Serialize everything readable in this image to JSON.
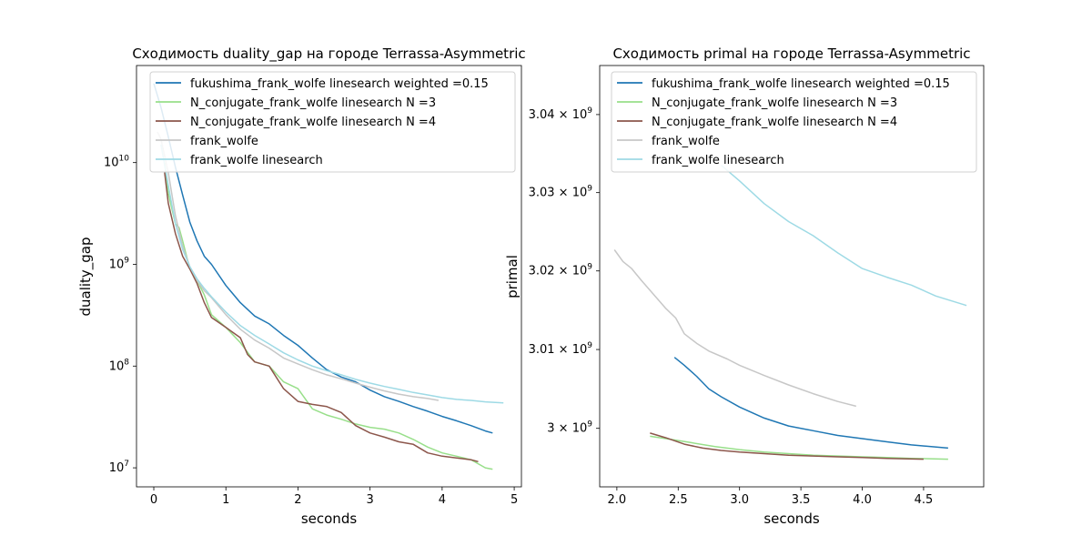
{
  "chart_data": [
    {
      "type": "line",
      "title": "Сходимость duality_gap на городе Terrassa-Asymmetric",
      "xlabel": "seconds",
      "ylabel": "duality_gap",
      "xlim": [
        -0.24,
        5.1
      ],
      "xticks": [
        0,
        1,
        2,
        3,
        4,
        5
      ],
      "xtick_labels": [
        "0",
        "1",
        "2",
        "3",
        "4",
        "5"
      ],
      "yscale": "log",
      "ylim": [
        6500000,
        90000000000
      ],
      "yticks": [
        10000000,
        100000000,
        1000000000,
        10000000000
      ],
      "ytick_labels": [
        {
          "base": "10",
          "exp": "7"
        },
        {
          "base": "10",
          "exp": "8"
        },
        {
          "base": "10",
          "exp": "9"
        },
        {
          "base": "10",
          "exp": "10"
        }
      ],
      "grid": false,
      "legend_position": "top-right",
      "series": [
        {
          "name": "fukushima_frank_wolfe linesearch weighted =0.15",
          "color": "#1f77b4",
          "x": [
            0,
            0.1,
            0.2,
            0.3,
            0.4,
            0.5,
            0.6,
            0.7,
            0.8,
            1.0,
            1.2,
            1.4,
            1.6,
            1.8,
            2.0,
            2.2,
            2.4,
            2.6,
            2.8,
            3.0,
            3.2,
            3.4,
            3.6,
            3.8,
            4.0,
            4.2,
            4.4,
            4.6,
            4.7
          ],
          "y": [
            60000000000,
            35000000000,
            18000000000,
            9000000000,
            4800000000,
            2600000000,
            1700000000,
            1200000000,
            1000000000,
            620000000,
            420000000,
            310000000,
            260000000,
            200000000,
            160000000,
            120000000,
            92000000,
            78000000,
            70000000,
            58000000,
            50000000,
            45000000,
            40000000,
            36000000,
            32000000,
            29000000,
            26000000,
            23000000,
            22000000
          ]
        },
        {
          "name": "N_conjugate_frank_wolfe linesearch N =3",
          "color": "#98df8a",
          "x": [
            0.15,
            0.2,
            0.3,
            0.35,
            0.4,
            0.5,
            0.6,
            0.7,
            0.8,
            1.0,
            1.2,
            1.4,
            1.6,
            1.8,
            2.0,
            2.2,
            2.4,
            2.6,
            2.8,
            3.0,
            3.2,
            3.4,
            3.6,
            3.8,
            4.0,
            4.2,
            4.4,
            4.6,
            4.7
          ],
          "y": [
            10000000000,
            5000000000,
            2500000000,
            2300000000,
            1700000000,
            900000000,
            700000000,
            500000000,
            320000000,
            240000000,
            170000000,
            110000000,
            100000000,
            70000000,
            60000000,
            38000000,
            33000000,
            30000000,
            27000000,
            25000000,
            24000000,
            22000000,
            19000000,
            16000000,
            14000000,
            13000000,
            12000000,
            10000000,
            9700000
          ]
        },
        {
          "name": "N_conjugate_frank_wolfe linesearch N =4",
          "color": "#8c564b",
          "x": [
            0.15,
            0.2,
            0.3,
            0.4,
            0.5,
            0.6,
            0.7,
            0.8,
            1.0,
            1.2,
            1.3,
            1.4,
            1.6,
            1.8,
            2.0,
            2.2,
            2.4,
            2.6,
            2.8,
            3.0,
            3.2,
            3.4,
            3.6,
            3.8,
            4.0,
            4.2,
            4.4,
            4.5
          ],
          "y": [
            8000000000,
            4000000000,
            2000000000,
            1200000000,
            900000000,
            650000000,
            420000000,
            300000000,
            240000000,
            190000000,
            130000000,
            110000000,
            100000000,
            60000000,
            45000000,
            42000000,
            40000000,
            35000000,
            26000000,
            22000000,
            20000000,
            18000000,
            17000000,
            14000000,
            13000000,
            12500000,
            12000000,
            11500000
          ]
        },
        {
          "name": "frank_wolfe",
          "color": "#c7c7c7",
          "x": [
            0.05,
            0.1,
            0.2,
            0.3,
            0.4,
            0.5,
            0.6,
            0.7,
            0.8,
            1.0,
            1.2,
            1.4,
            1.6,
            1.8,
            2.0,
            2.2,
            2.4,
            2.6,
            2.8,
            3.0,
            3.2,
            3.4,
            3.6,
            3.8,
            3.95
          ],
          "y": [
            20000000000,
            17000000000,
            8000000000,
            3000000000,
            1500000000,
            950000000,
            700000000,
            550000000,
            470000000,
            320000000,
            230000000,
            180000000,
            150000000,
            120000000,
            105000000,
            92000000,
            82000000,
            75000000,
            68000000,
            62000000,
            57000000,
            53000000,
            50000000,
            48000000,
            46000000
          ]
        },
        {
          "name": "frank_wolfe linesearch",
          "color": "#9edae5",
          "x": [
            0.1,
            0.2,
            0.3,
            0.4,
            0.5,
            0.6,
            0.7,
            0.8,
            1.0,
            1.2,
            1.4,
            1.6,
            1.8,
            2.0,
            2.2,
            2.4,
            2.6,
            2.8,
            3.0,
            3.2,
            3.4,
            3.6,
            3.8,
            4.0,
            4.2,
            4.4,
            4.6,
            4.85
          ],
          "y": [
            15000000000,
            6000000000,
            2500000000,
            1400000000,
            950000000,
            720000000,
            580000000,
            480000000,
            340000000,
            250000000,
            200000000,
            165000000,
            135000000,
            115000000,
            100000000,
            90000000,
            82000000,
            74000000,
            68000000,
            63000000,
            59000000,
            55000000,
            52000000,
            49000000,
            47000000,
            46000000,
            44500000,
            43500000
          ]
        }
      ]
    },
    {
      "type": "line",
      "title": "Сходимость primal на городе Terrassa-Asymmetric",
      "xlabel": "seconds",
      "ylabel": "primal",
      "xlim": [
        1.86,
        4.99
      ],
      "xticks": [
        2.0,
        2.5,
        3.0,
        3.5,
        4.0,
        4.5
      ],
      "xtick_labels": [
        "2.0",
        "2.5",
        "3.0",
        "3.5",
        "4.0",
        "4.5"
      ],
      "yscale": "log",
      "ylim": [
        2992600000,
        3046300000
      ],
      "yticks": [
        3000000000,
        3010000000,
        3020000000,
        3030000000,
        3040000000
      ],
      "ytick_labels": [
        {
          "base": "3 × 10",
          "exp": "9"
        },
        {
          "base": "3.01 × 10",
          "exp": "9"
        },
        {
          "base": "3.02 × 10",
          "exp": "9"
        },
        {
          "base": "3.03 × 10",
          "exp": "9"
        },
        {
          "base": "3.04 × 10",
          "exp": "9"
        }
      ],
      "grid": false,
      "legend_position": "top-right",
      "series": [
        {
          "name": "fukushima_frank_wolfe linesearch weighted =0.15",
          "color": "#1f77b4",
          "x": [
            2.47,
            2.55,
            2.65,
            2.75,
            2.85,
            3.0,
            3.2,
            3.4,
            3.6,
            3.8,
            4.0,
            4.2,
            4.4,
            4.7
          ],
          "y": [
            3009000000,
            3008000000,
            3006600000,
            3005000000,
            3004000000,
            3002700000,
            3001300000,
            3000300000,
            2999700000,
            2999100000,
            2998700000,
            2998300000,
            2997900000,
            2997500000
          ]
        },
        {
          "name": "N_conjugate_frank_wolfe linesearch N =3",
          "color": "#98df8a",
          "x": [
            2.27,
            2.4,
            2.6,
            2.8,
            3.0,
            3.2,
            3.4,
            3.6,
            3.8,
            4.0,
            4.2,
            4.4,
            4.7
          ],
          "y": [
            2999000000,
            2998700000,
            2998200000,
            2997700000,
            2997300000,
            2997000000,
            2996800000,
            2996600000,
            2996500000,
            2996400000,
            2996300000,
            2996200000,
            2996100000
          ]
        },
        {
          "name": "N_conjugate_frank_wolfe linesearch N =4",
          "color": "#8c564b",
          "x": [
            2.27,
            2.4,
            2.55,
            2.7,
            2.85,
            3.0,
            3.2,
            3.4,
            3.6,
            3.8,
            4.0,
            4.2,
            4.5
          ],
          "y": [
            2999400000,
            2998800000,
            2998000000,
            2997500000,
            2997200000,
            2997000000,
            2996800000,
            2996600000,
            2996500000,
            2996400000,
            2996300000,
            2996200000,
            2996100000
          ]
        },
        {
          "name": "frank_wolfe",
          "color": "#c7c7c7",
          "x": [
            1.98,
            2.05,
            2.12,
            2.2,
            2.3,
            2.4,
            2.48,
            2.55,
            2.65,
            2.75,
            2.9,
            3.0,
            3.2,
            3.4,
            3.6,
            3.8,
            3.95
          ],
          "y": [
            3022700000,
            3021200000,
            3020300000,
            3018800000,
            3017000000,
            3015200000,
            3014000000,
            3012000000,
            3010800000,
            3009800000,
            3008800000,
            3008000000,
            3006700000,
            3005500000,
            3004400000,
            3003400000,
            3002800000
          ]
        },
        {
          "name": "frank_wolfe linesearch",
          "color": "#9edae5",
          "x": [
            2.85,
            3.0,
            3.2,
            3.4,
            3.6,
            3.8,
            4.0,
            4.2,
            4.4,
            4.6,
            4.85
          ],
          "y": [
            3033500000,
            3031500000,
            3028600000,
            3026300000,
            3024500000,
            3022300000,
            3020300000,
            3019200000,
            3018200000,
            3016800000,
            3015600000
          ]
        }
      ]
    }
  ]
}
